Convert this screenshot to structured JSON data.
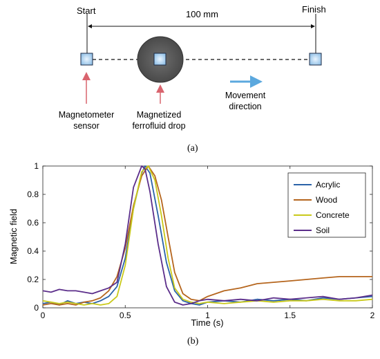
{
  "panel_a": {
    "label": "(a)",
    "start_label": "Start",
    "finish_label": "Finish",
    "distance_label": "100 mm",
    "sensor_label_line1": "Magnetometer",
    "sensor_label_line2": "sensor",
    "drop_label_line1": "Magnetized",
    "drop_label_line2": "ferrofluid drop",
    "movement_label_line1": "Movement",
    "movement_label_line2": "direction",
    "colors": {
      "square_fill": "#a9d0f0",
      "drop_fill": "#5a5a5a",
      "red_arrow": "#d9646e",
      "blue_arrow": "#5ba8de"
    }
  },
  "panel_b": {
    "label": "(b)"
  },
  "chart_data": {
    "type": "line",
    "xlabel": "Time (s)",
    "ylabel": "Magnetic field",
    "xlim": [
      0,
      2
    ],
    "ylim": [
      0,
      1
    ],
    "xticks": [
      0,
      0.5,
      1,
      1.5,
      2
    ],
    "xtick_labels": [
      "0",
      "0.5",
      "1",
      "1.5",
      "2"
    ],
    "yticks": [
      0,
      0.2,
      0.4,
      0.6,
      0.8,
      1
    ],
    "ytick_labels": [
      "0",
      "0.2",
      "0.4",
      "0.6",
      "0.8",
      "1"
    ],
    "grid": false,
    "legend_position": "top-right",
    "series": [
      {
        "name": "Acrylic",
        "color": "#2a62a8",
        "x": [
          0,
          0.05,
          0.1,
          0.15,
          0.2,
          0.25,
          0.3,
          0.35,
          0.4,
          0.45,
          0.5,
          0.55,
          0.6,
          0.62,
          0.65,
          0.7,
          0.75,
          0.8,
          0.85,
          0.9,
          0.95,
          1.0,
          1.1,
          1.2,
          1.3,
          1.4,
          1.5,
          1.6,
          1.7,
          1.8,
          1.9,
          2.0
        ],
        "y": [
          0.03,
          0.04,
          0.02,
          0.05,
          0.03,
          0.04,
          0.03,
          0.05,
          0.08,
          0.15,
          0.35,
          0.7,
          0.95,
          1.0,
          0.95,
          0.65,
          0.32,
          0.12,
          0.05,
          0.03,
          0.02,
          0.04,
          0.05,
          0.04,
          0.06,
          0.05,
          0.06,
          0.05,
          0.07,
          0.06,
          0.07,
          0.08
        ]
      },
      {
        "name": "Wood",
        "color": "#b5651d",
        "x": [
          0,
          0.05,
          0.1,
          0.15,
          0.2,
          0.25,
          0.3,
          0.35,
          0.4,
          0.45,
          0.5,
          0.55,
          0.6,
          0.64,
          0.68,
          0.72,
          0.76,
          0.8,
          0.85,
          0.9,
          0.95,
          1.0,
          1.1,
          1.2,
          1.3,
          1.4,
          1.5,
          1.6,
          1.7,
          1.8,
          1.9,
          2.0
        ],
        "y": [
          0.02,
          0.03,
          0.02,
          0.03,
          0.02,
          0.04,
          0.05,
          0.07,
          0.12,
          0.22,
          0.42,
          0.72,
          0.93,
          1.0,
          0.93,
          0.76,
          0.5,
          0.25,
          0.1,
          0.06,
          0.05,
          0.08,
          0.12,
          0.14,
          0.17,
          0.18,
          0.19,
          0.2,
          0.21,
          0.22,
          0.22,
          0.22
        ]
      },
      {
        "name": "Concrete",
        "color": "#c9c91a",
        "x": [
          0,
          0.05,
          0.1,
          0.15,
          0.2,
          0.25,
          0.3,
          0.35,
          0.4,
          0.45,
          0.5,
          0.55,
          0.6,
          0.64,
          0.68,
          0.72,
          0.76,
          0.8,
          0.85,
          0.9,
          0.95,
          1.0,
          1.1,
          1.2,
          1.3,
          1.4,
          1.5,
          1.6,
          1.7,
          1.8,
          1.9,
          2.0
        ],
        "y": [
          0.05,
          0.04,
          0.03,
          0.04,
          0.03,
          0.02,
          0.03,
          0.02,
          0.03,
          0.08,
          0.3,
          0.7,
          0.96,
          1.0,
          0.9,
          0.65,
          0.35,
          0.14,
          0.06,
          0.04,
          0.03,
          0.04,
          0.03,
          0.04,
          0.05,
          0.04,
          0.05,
          0.05,
          0.06,
          0.05,
          0.05,
          0.06
        ]
      },
      {
        "name": "Soil",
        "color": "#5b2d8a",
        "x": [
          0,
          0.05,
          0.1,
          0.15,
          0.2,
          0.25,
          0.3,
          0.35,
          0.4,
          0.45,
          0.5,
          0.55,
          0.6,
          0.62,
          0.65,
          0.7,
          0.75,
          0.8,
          0.85,
          0.9,
          0.95,
          1.0,
          1.1,
          1.2,
          1.3,
          1.4,
          1.5,
          1.6,
          1.7,
          1.8,
          1.9,
          2.0
        ],
        "y": [
          0.12,
          0.11,
          0.13,
          0.12,
          0.12,
          0.11,
          0.1,
          0.12,
          0.14,
          0.18,
          0.45,
          0.85,
          1.0,
          0.98,
          0.82,
          0.45,
          0.15,
          0.04,
          0.02,
          0.03,
          0.05,
          0.06,
          0.05,
          0.06,
          0.05,
          0.07,
          0.06,
          0.07,
          0.08,
          0.06,
          0.07,
          0.09
        ]
      }
    ]
  }
}
